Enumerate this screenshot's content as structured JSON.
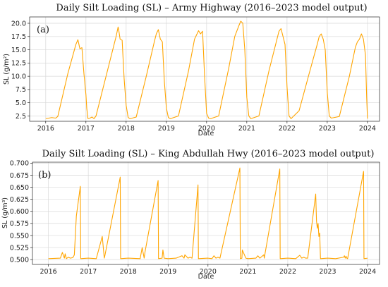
{
  "chart_data": [
    {
      "type": "line",
      "panel": "(a)",
      "title": "Daily Silt Loading (SL) – Army Highway (2016–2023 model output)",
      "xlabel": "Date",
      "ylabel": "SL (g/m²)",
      "xlim": [
        2015.6,
        2024.3
      ],
      "ylim": [
        1.5,
        21.2
      ],
      "xticks": [
        2016,
        2017,
        2018,
        2019,
        2020,
        2021,
        2022,
        2023,
        2024
      ],
      "xtick_labels": [
        "2016",
        "2017",
        "2018",
        "2019",
        "2020",
        "2021",
        "2022",
        "2023",
        "2024"
      ],
      "yticks": [
        2.5,
        5.0,
        7.5,
        10.0,
        12.5,
        15.0,
        17.5,
        20.0
      ],
      "ytick_labels": [
        "2.5",
        "5.0",
        "7.5",
        "10.0",
        "12.5",
        "15.0",
        "17.5",
        "20.0"
      ],
      "grid": true,
      "color": "#FFA500",
      "series": [
        {
          "x": [
            2016.0,
            2016.15,
            2016.25,
            2016.3,
            2016.55,
            2016.75,
            2016.8,
            2016.85,
            2016.9,
            2016.95,
            2016.97,
            2016.98,
            2017.0,
            2017.02,
            2017.05,
            2017.1,
            2017.15,
            2017.2,
            2017.25,
            2017.5,
            2017.75,
            2017.8,
            2017.82,
            2017.85,
            2017.9,
            2017.95,
            2018.0,
            2018.05,
            2018.1,
            2018.25,
            2018.5,
            2018.7,
            2018.75,
            2018.8,
            2018.85,
            2018.9,
            2018.95,
            2019.0,
            2019.05,
            2019.1,
            2019.3,
            2019.55,
            2019.7,
            2019.75,
            2019.8,
            2019.85,
            2019.9,
            2019.95,
            2020.0,
            2020.05,
            2020.1,
            2020.3,
            2020.55,
            2020.7,
            2020.75,
            2020.8,
            2020.85,
            2020.9,
            2020.95,
            2021.0,
            2021.05,
            2021.1,
            2021.3,
            2021.55,
            2021.75,
            2021.8,
            2021.85,
            2021.9,
            2021.95,
            2022.0,
            2022.05,
            2022.1,
            2022.3,
            2022.55,
            2022.75,
            2022.8,
            2022.85,
            2022.9,
            2022.95,
            2023.0,
            2023.05,
            2023.1,
            2023.3,
            2023.55,
            2023.7,
            2023.75,
            2023.8,
            2023.85,
            2023.9,
            2023.95,
            2023.98,
            2024.0
          ],
          "y": [
            2.0,
            2.2,
            2.1,
            2.4,
            10.5,
            16.0,
            16.9,
            15.2,
            15.4,
            10.5,
            9.0,
            8.0,
            6.5,
            4.0,
            2.0,
            2.1,
            2.3,
            2.0,
            2.5,
            10.0,
            17.5,
            19.3,
            18.5,
            17.0,
            16.8,
            9.5,
            4.5,
            2.2,
            2.0,
            2.3,
            10.0,
            16.5,
            18.0,
            18.8,
            17.0,
            16.5,
            9.0,
            4.0,
            2.2,
            2.0,
            2.5,
            11.0,
            17.0,
            17.8,
            18.6,
            18.0,
            18.5,
            10.0,
            3.0,
            2.1,
            2.0,
            2.5,
            11.5,
            17.5,
            18.5,
            19.5,
            20.4,
            20.0,
            15.0,
            6.0,
            2.5,
            2.0,
            2.5,
            11.0,
            17.0,
            18.5,
            19.0,
            17.5,
            16.0,
            8.0,
            2.5,
            2.0,
            3.5,
            10.5,
            16.0,
            17.5,
            18.0,
            17.0,
            15.0,
            7.0,
            2.5,
            2.1,
            2.4,
            10.0,
            15.5,
            16.5,
            17.0,
            18.0,
            17.0,
            14.0,
            6.0,
            2.0
          ]
        }
      ]
    },
    {
      "type": "line",
      "panel": "(b)",
      "title": "Daily Silt Loading (SL) – King Abdullah Hwy (2016–2023 model output)",
      "xlabel": "Date",
      "ylabel": "SL (g/m³)",
      "xlim": [
        2015.6,
        2024.3
      ],
      "ylim": [
        0.49,
        0.702
      ],
      "xticks": [
        2016,
        2017,
        2018,
        2019,
        2020,
        2021,
        2022,
        2023,
        2024
      ],
      "xtick_labels": [
        "2016",
        "2017",
        "2018",
        "2019",
        "2020",
        "2021",
        "2022",
        "2023",
        "2024"
      ],
      "yticks": [
        0.5,
        0.525,
        0.55,
        0.575,
        0.6,
        0.625,
        0.65,
        0.675,
        0.7
      ],
      "ytick_labels": [
        "0.500",
        "0.525",
        "0.550",
        "0.575",
        "0.600",
        "0.625",
        "0.650",
        "0.675",
        "0.700"
      ],
      "grid": true,
      "color": "#FFA500",
      "series": [
        {
          "x": [
            2016.0,
            2016.3,
            2016.35,
            2016.4,
            2016.42,
            2016.45,
            2016.5,
            2016.55,
            2016.6,
            2016.62,
            2016.65,
            2016.7,
            2016.8,
            2016.81,
            2017.0,
            2017.2,
            2017.35,
            2017.4,
            2017.42,
            2017.8,
            2017.81,
            2018.0,
            2018.3,
            2018.35,
            2018.4,
            2018.42,
            2018.75,
            2018.76,
            2018.85,
            2018.87,
            2018.9,
            2019.0,
            2019.2,
            2019.35,
            2019.4,
            2019.42,
            2019.5,
            2019.55,
            2019.6,
            2019.75,
            2019.76,
            2020.0,
            2020.1,
            2020.15,
            2020.2,
            2020.25,
            2020.3,
            2020.8,
            2020.81,
            2020.85,
            2020.86,
            2020.95,
            2021.0,
            2021.2,
            2021.25,
            2021.3,
            2021.4,
            2021.41,
            2021.8,
            2021.81,
            2022.0,
            2022.2,
            2022.3,
            2022.35,
            2022.4,
            2022.45,
            2022.5,
            2022.7,
            2022.72,
            2022.74,
            2022.76,
            2022.78,
            2022.8,
            2022.82,
            2023.0,
            2023.2,
            2023.4,
            2023.42,
            2023.44,
            2023.46,
            2023.48,
            2023.5,
            2023.9,
            2023.91,
            2024.0
          ],
          "y": [
            0.502,
            0.503,
            0.515,
            0.503,
            0.512,
            0.502,
            0.505,
            0.503,
            0.504,
            0.505,
            0.51,
            0.59,
            0.652,
            0.502,
            0.503,
            0.502,
            0.548,
            0.503,
            0.51,
            0.671,
            0.502,
            0.503,
            0.502,
            0.525,
            0.503,
            0.515,
            0.664,
            0.502,
            0.503,
            0.52,
            0.503,
            0.502,
            0.503,
            0.508,
            0.503,
            0.51,
            0.503,
            0.505,
            0.503,
            0.655,
            0.502,
            0.503,
            0.502,
            0.508,
            0.503,
            0.505,
            0.503,
            0.69,
            0.502,
            0.503,
            0.52,
            0.503,
            0.502,
            0.503,
            0.508,
            0.503,
            0.51,
            0.503,
            0.688,
            0.502,
            0.503,
            0.502,
            0.509,
            0.503,
            0.505,
            0.503,
            0.503,
            0.636,
            0.58,
            0.565,
            0.575,
            0.548,
            0.555,
            0.502,
            0.503,
            0.502,
            0.505,
            0.508,
            0.503,
            0.507,
            0.503,
            0.502,
            0.683,
            0.502,
            0.503
          ]
        }
      ]
    }
  ]
}
